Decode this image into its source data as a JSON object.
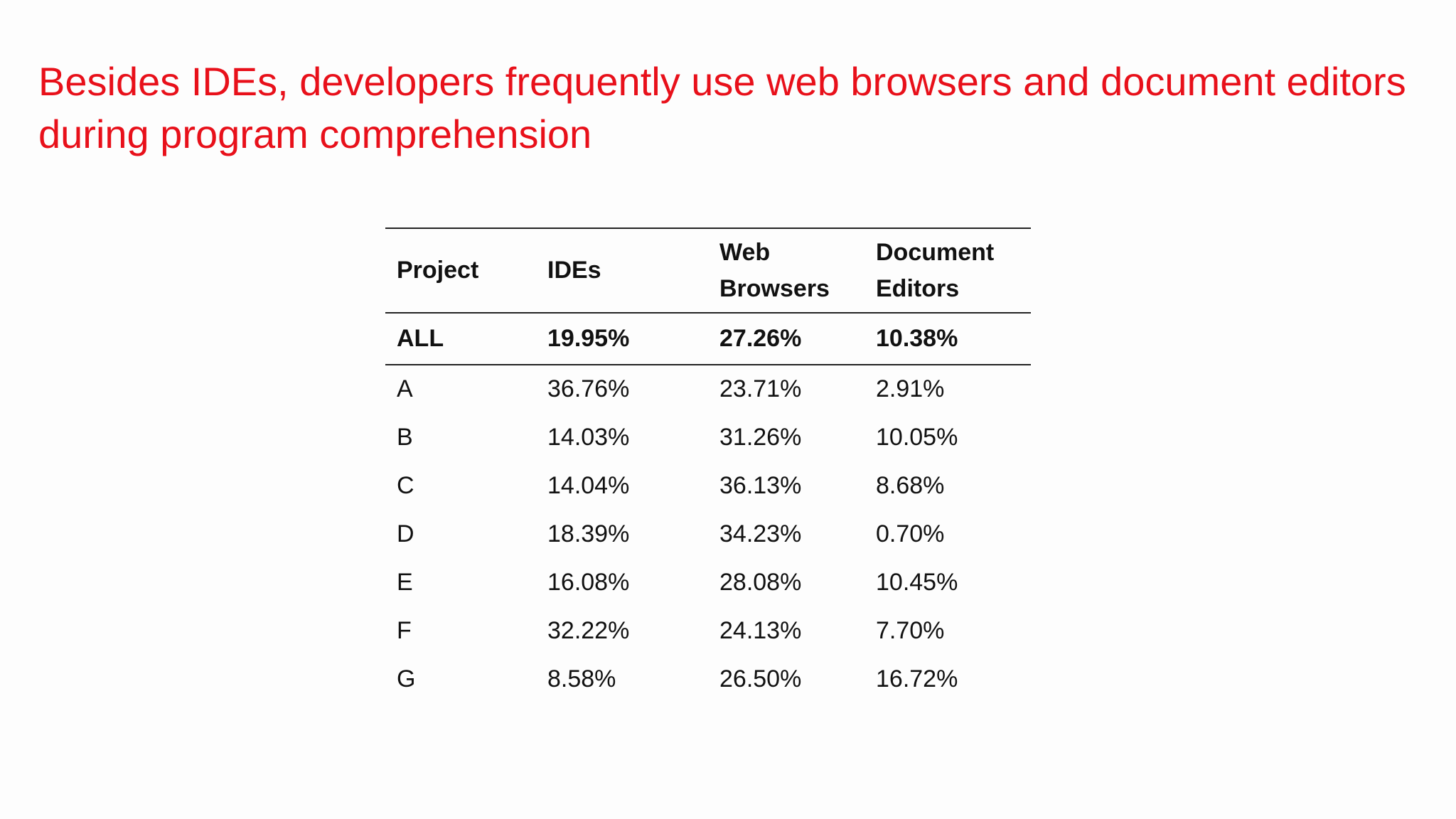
{
  "title": "Besides IDEs, developers frequently use web browsers and document editors during program comprehension",
  "table": {
    "header": [
      "Project",
      "IDEs",
      "Web Browsers",
      "Document Editors"
    ],
    "rows": [
      [
        "ALL",
        "19.95%",
        "27.26%",
        "10.38%"
      ],
      [
        "A",
        "36.76%",
        "23.71%",
        "2.91%"
      ],
      [
        "B",
        "14.03%",
        "31.26%",
        "10.05%"
      ],
      [
        "C",
        "14.04%",
        "36.13%",
        "8.68%"
      ],
      [
        "D",
        "18.39%",
        "34.23%",
        "0.70%"
      ],
      [
        "E",
        "16.08%",
        "28.08%",
        "10.45%"
      ],
      [
        "F",
        "32.22%",
        "24.13%",
        "7.70%"
      ],
      [
        "G",
        "8.58%",
        "26.50%",
        "16.72%"
      ]
    ]
  }
}
